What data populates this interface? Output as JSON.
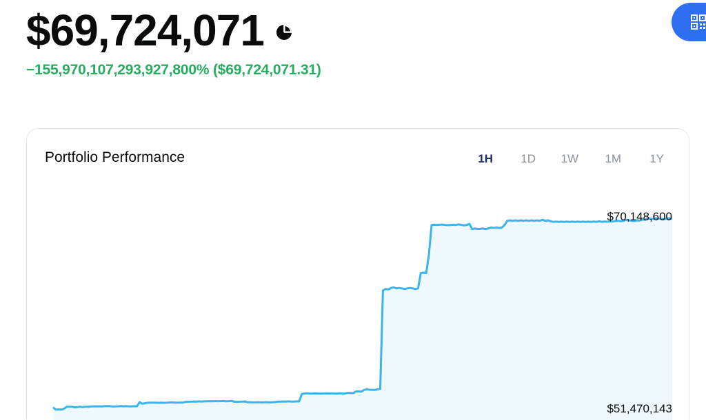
{
  "balance": "$69,724,071",
  "change": "−155,970,107,293,927,800% ($69,724,071.31)",
  "icons": {
    "pie": "pie-chart-icon",
    "qr": "qr-code-icon"
  },
  "colors": {
    "accent": "#2d6ff0",
    "positive": "#27ad5f",
    "line": "#3ab4ea",
    "fill": "#eef8fd"
  },
  "card": {
    "title": "Portfolio Performance",
    "ranges": [
      "1H",
      "1D",
      "1W",
      "1M",
      "1Y"
    ],
    "active_range": "1H",
    "max_label": "$70,148,600",
    "min_label": "$51,470,143"
  },
  "chart_data": {
    "type": "area",
    "title": "",
    "xlabel": "",
    "ylabel": "",
    "ylim": [
      51470143,
      70148600
    ],
    "values": [
      51700000,
      51480000,
      51500000,
      51480000,
      51550000,
      51750000,
      51750000,
      51750000,
      51700000,
      51720000,
      51760000,
      51720000,
      51750000,
      51760000,
      51780000,
      51800000,
      51790000,
      51800000,
      51790000,
      51810000,
      51820000,
      51810000,
      51780000,
      51790000,
      51800000,
      51820000,
      51800000,
      51810000,
      51800000,
      51790000,
      51810000,
      51800000,
      52200000,
      52050000,
      52100000,
      52150000,
      52150000,
      52150000,
      52150000,
      52140000,
      52150000,
      52140000,
      52150000,
      52170000,
      52180000,
      52170000,
      52150000,
      52170000,
      52160000,
      52230000,
      52250000,
      52250000,
      52270000,
      52260000,
      52280000,
      52270000,
      52280000,
      52290000,
      52300000,
      52290000,
      52310000,
      52290000,
      52300000,
      52320000,
      52280000,
      52300000,
      52330000,
      52250000,
      52230000,
      52250000,
      52260000,
      52270000,
      52190000,
      52200000,
      52180000,
      52190000,
      52200000,
      52180000,
      52190000,
      52200000,
      52180000,
      52190000,
      52210000,
      52250000,
      52260000,
      52270000,
      52260000,
      52280000,
      52270000,
      52260000,
      52280000,
      52270000,
      53000000,
      53050000,
      53060000,
      53040000,
      53050000,
      53060000,
      53050000,
      53040000,
      53050000,
      53060000,
      53050000,
      53060000,
      53050000,
      53040000,
      53060000,
      53050000,
      53050000,
      53100000,
      53100000,
      53080000,
      53250000,
      53250000,
      53230000,
      53400000,
      53450000,
      53420000,
      53400000,
      53400000,
      53450000,
      53500000,
      63100000,
      63250000,
      63200000,
      63350000,
      63400000,
      63300000,
      63350000,
      63300000,
      63250000,
      63300000,
      63350000,
      63300000,
      63250000,
      63300000,
      64800000,
      64850000,
      64800000,
      66600000,
      69500000,
      69520000,
      69500000,
      69520000,
      69540000,
      69500000,
      69480000,
      69500000,
      69520000,
      69500000,
      69550000,
      69500000,
      69450000,
      69500000,
      69600000,
      69100000,
      69150000,
      69100000,
      69120000,
      69150000,
      69100000,
      69150000,
      69250000,
      69200000,
      69250000,
      69200000,
      69250000,
      69500000,
      69900000,
      69950000,
      69900000,
      69950000,
      69900000,
      69950000,
      69900000,
      69950000,
      69900000,
      69950000,
      69900000,
      69950000,
      69900000,
      70000000,
      69900000,
      69950000,
      69850000,
      69800000,
      69820000,
      69800000,
      69820000,
      69800000,
      69820000,
      69800000,
      69820000,
      69800000,
      69820000,
      69800000,
      69820000,
      69800000,
      69820000,
      69800000,
      69830000,
      69800000,
      69850000,
      69800000,
      69830000,
      69810000,
      69850000,
      69830000,
      69880000,
      69900000,
      69850000,
      69900000,
      70000000,
      69950000,
      69900000,
      69880000,
      69950000,
      69920000,
      70020000,
      70000000,
      70148600,
      70100000,
      70080000,
      70148600,
      70120000,
      70100000,
      70050000,
      70120000,
      70148600,
      70100000
    ]
  }
}
